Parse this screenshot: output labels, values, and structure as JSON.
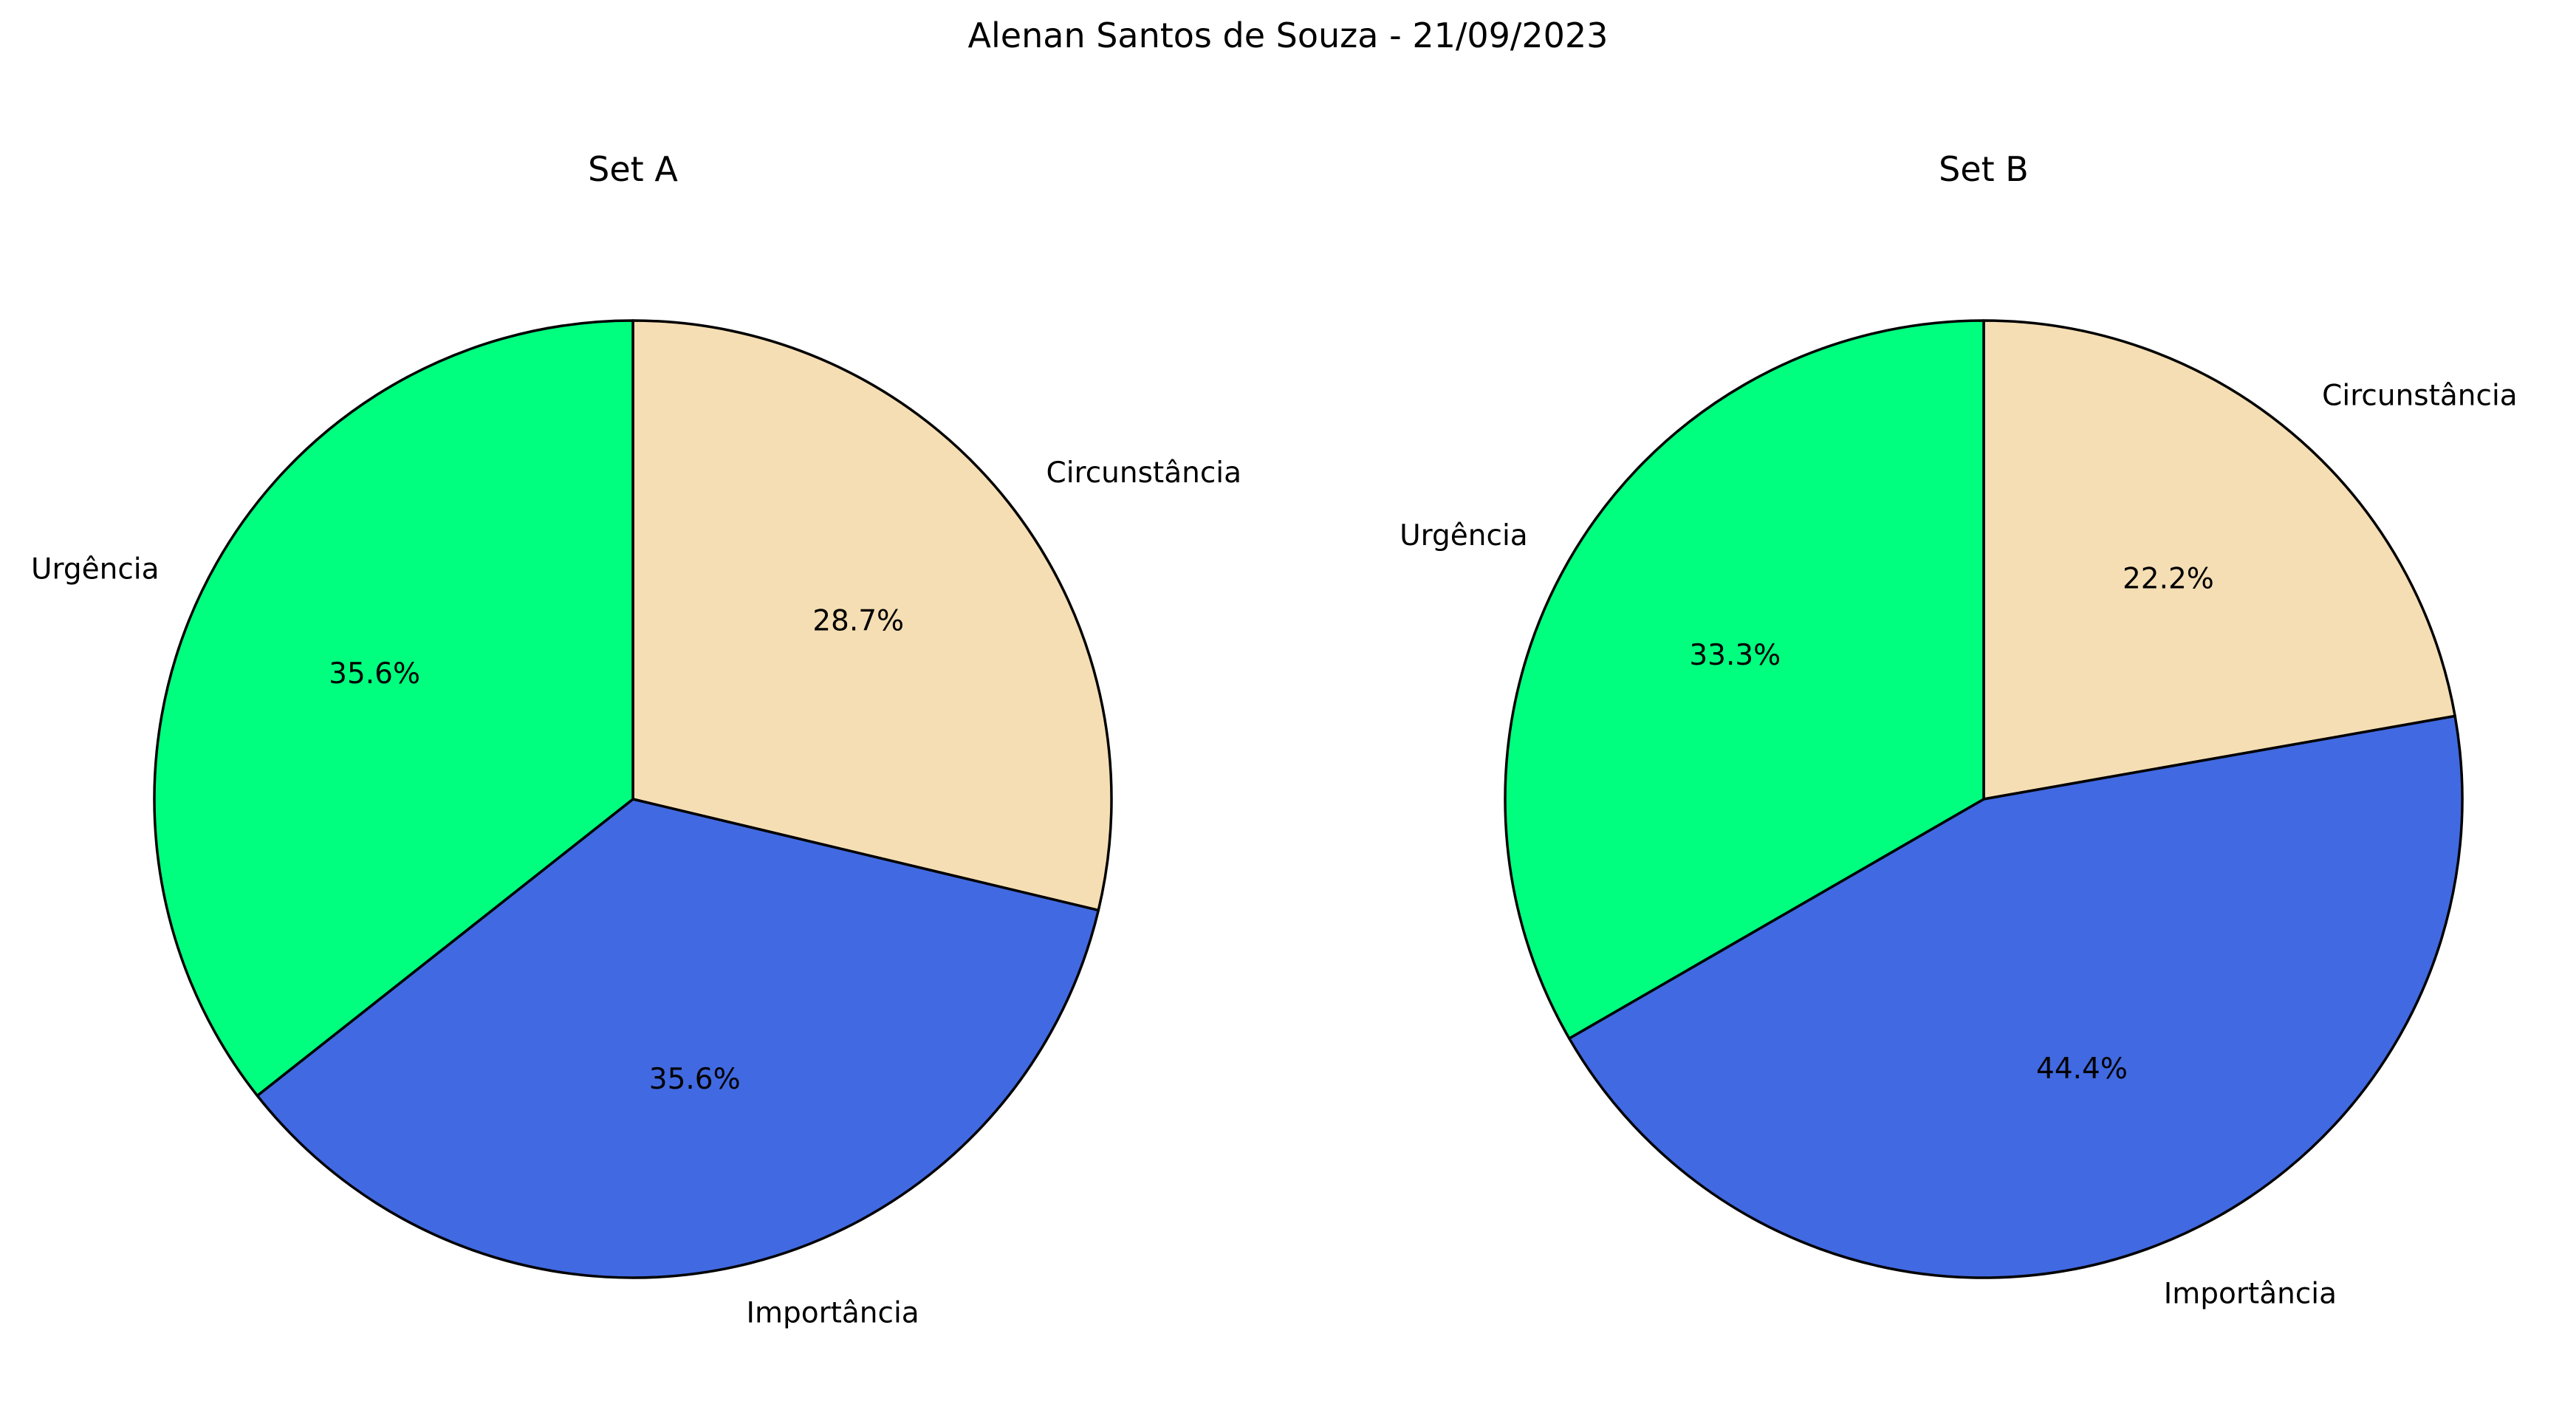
{
  "figure": {
    "suptitle": "Alenan Santos de Souza - 21/09/2023"
  },
  "chart_data": [
    {
      "type": "pie",
      "title": "Set A",
      "categories": [
        "Circunstância",
        "Importância",
        "Urgência"
      ],
      "values": [
        28.7,
        35.6,
        35.6
      ],
      "labels": [
        "28.7%",
        "35.6%",
        "35.6%"
      ],
      "colors": [
        "#F5DEB3",
        "#4169E1",
        "#00FF7F"
      ],
      "start_angle_deg": 90,
      "direction": "clockwise",
      "edgecolor": "#000000"
    },
    {
      "type": "pie",
      "title": "Set B",
      "categories": [
        "Circunstância",
        "Importância",
        "Urgência"
      ],
      "values": [
        22.2,
        44.4,
        33.3
      ],
      "labels": [
        "22.2%",
        "44.4%",
        "33.3%"
      ],
      "colors": [
        "#F5DEB3",
        "#4169E1",
        "#00FF7F"
      ],
      "start_angle_deg": 90,
      "direction": "clockwise",
      "edgecolor": "#000000"
    }
  ]
}
